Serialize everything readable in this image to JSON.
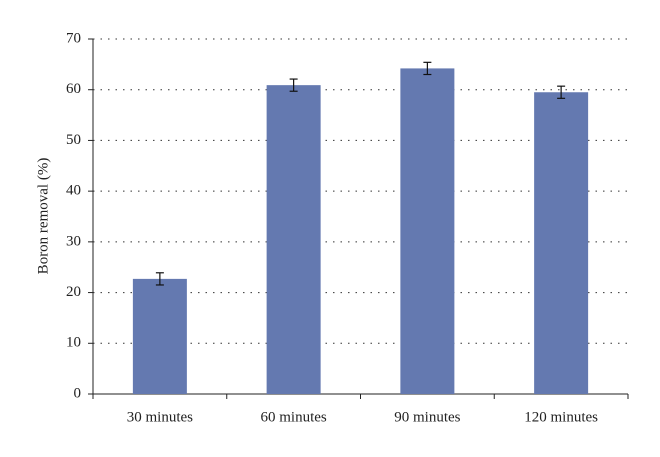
{
  "chart_data": {
    "type": "bar",
    "y_label": "Boron removal (%)",
    "categories": [
      "30 minutes",
      "60 minutes",
      "90 minutes",
      "120 minutes"
    ],
    "values": [
      22.7,
      60.9,
      64.2,
      59.5
    ],
    "errors": [
      1.2,
      1.2,
      1.2,
      1.2
    ],
    "color": "#6479b0",
    "ylim": [
      0,
      70
    ],
    "yticks": [
      0,
      10,
      20,
      30,
      40,
      50,
      60,
      70
    ],
    "grid": true
  }
}
